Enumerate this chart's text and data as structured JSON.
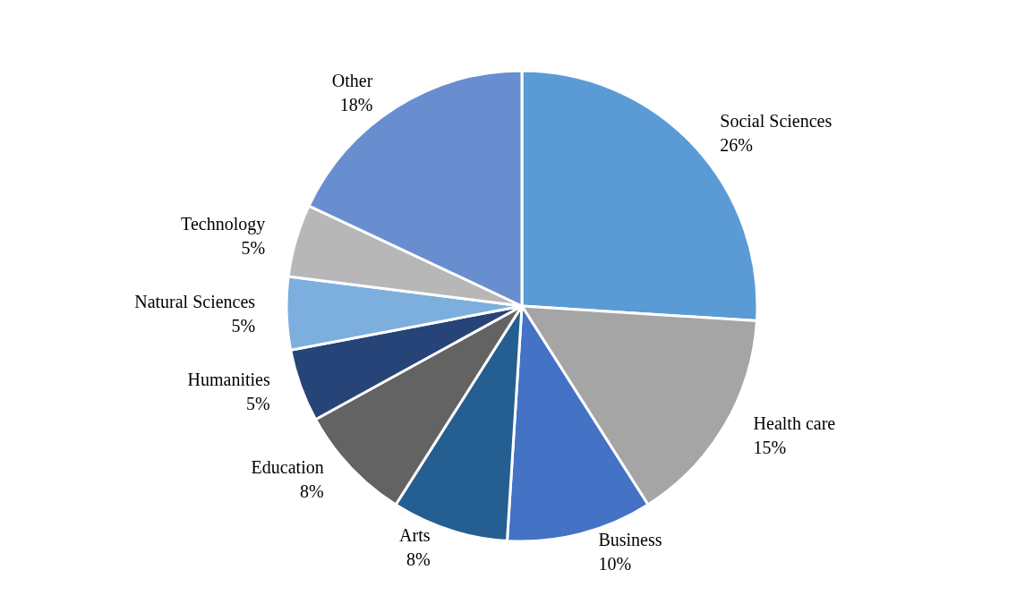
{
  "chart_data": {
    "type": "pie",
    "categories": [
      "Social Sciences",
      "Health care",
      "Business",
      "Arts",
      "Education",
      "Humanities",
      "Natural Sciences",
      "Technology",
      "Other"
    ],
    "values": [
      26,
      15,
      10,
      8,
      8,
      5,
      5,
      5,
      18
    ],
    "colors": [
      "#5b9bd5",
      "#a5a5a5",
      "#4472c4",
      "#255e91",
      "#636363",
      "#264478",
      "#7cafdd",
      "#b7b7b7",
      "#698ed0"
    ],
    "value_labels": [
      "26%",
      "15%",
      "10%",
      "8%",
      "8%",
      "5%",
      "5%",
      "5%",
      "18%"
    ],
    "legend": false
  }
}
